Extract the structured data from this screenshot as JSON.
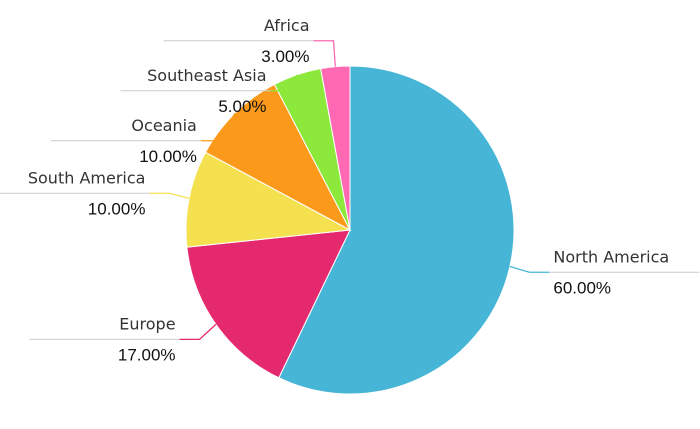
{
  "chart_data": {
    "type": "pie",
    "categories": [
      "North America",
      "Europe",
      "South America",
      "Oceania",
      "Southeast Asia",
      "Africa"
    ],
    "values": [
      60,
      17,
      10,
      10,
      5,
      3
    ],
    "value_labels": [
      "60.00%",
      "17.00%",
      "10.00%",
      "10.00%",
      "5.00%",
      "3.00%"
    ],
    "colors": [
      "#47b6d6",
      "#e5296e",
      "#f5e050",
      "#fb9a1a",
      "#8ce83a",
      "#ff69b4"
    ]
  }
}
